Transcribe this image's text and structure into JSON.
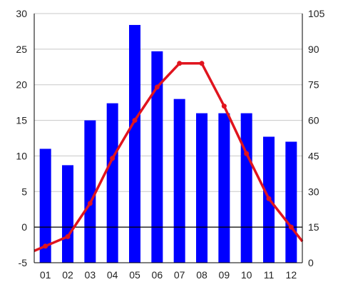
{
  "chart_data": {
    "type": "bar",
    "categories": [
      "01",
      "02",
      "03",
      "04",
      "05",
      "06",
      "07",
      "08",
      "09",
      "10",
      "11",
      "12"
    ],
    "series": [
      {
        "type": "bar",
        "axis": "left",
        "color": "#0000ff",
        "values": [
          11.0,
          8.7,
          15.0,
          17.4,
          28.4,
          24.7,
          18.0,
          16.0,
          16.0,
          16.0,
          12.7,
          12.0
        ]
      },
      {
        "type": "line",
        "axis": "right",
        "color": "#e0141e",
        "values": [
          7,
          11,
          25,
          44,
          60,
          74,
          84,
          84,
          66,
          46,
          27,
          15
        ]
      }
    ],
    "left_axis": {
      "ylim": [
        -5,
        30
      ],
      "ticks": [
        "30",
        "25",
        "20",
        "15",
        "10",
        "5",
        "0",
        "-5"
      ],
      "zero_line": true
    },
    "right_axis": {
      "ylim": [
        0,
        105
      ],
      "ticks": [
        "105",
        "90",
        "75",
        "60",
        "45",
        "30",
        "15",
        "0"
      ]
    },
    "grid": "horizontal",
    "legend": "none"
  }
}
